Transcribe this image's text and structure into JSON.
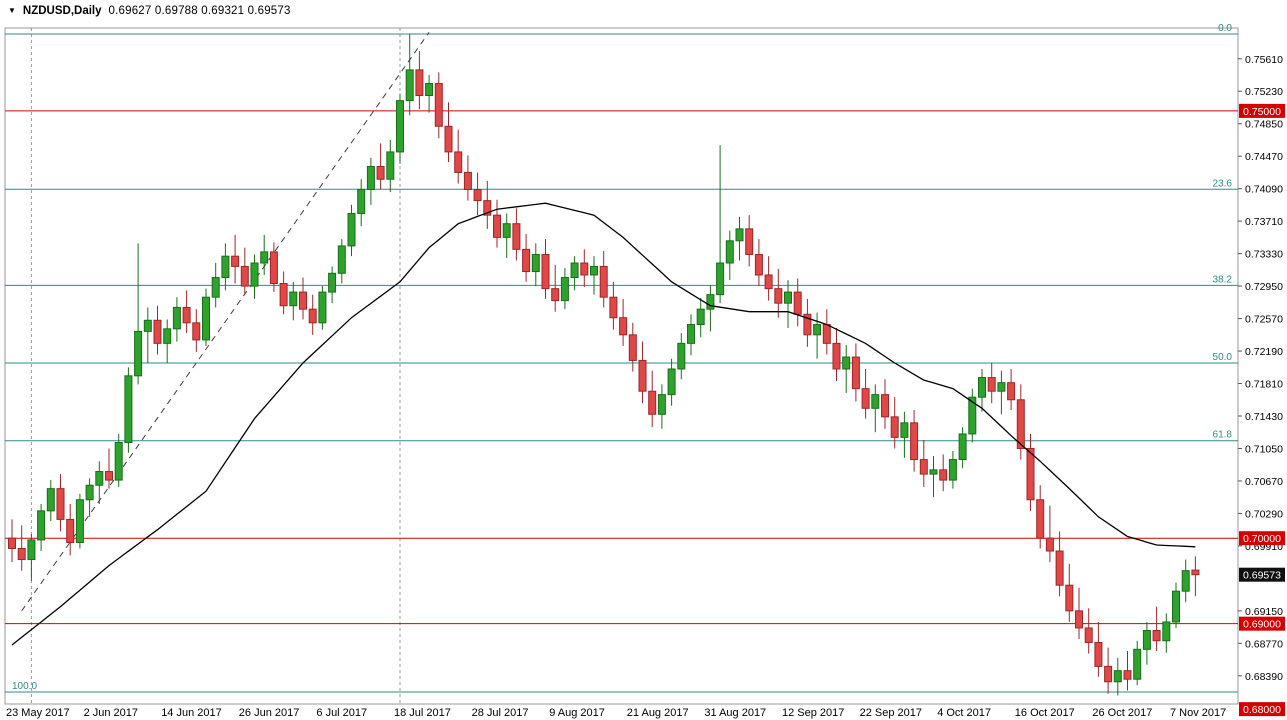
{
  "header": {
    "dropdown_glyph": "▼",
    "symbol": "NZDUSD,Daily",
    "ohlc": "0.69627 0.69788 0.69321 0.69573"
  },
  "chart_data": {
    "type": "candlestick",
    "symbol": "NZDUSD",
    "timeframe": "Daily",
    "open": 0.69627,
    "high": 0.69788,
    "low": 0.69321,
    "close": 0.69573,
    "current_price": 0.69573,
    "current_price_label": "0.69573",
    "ylim": [
      0.6806,
      0.7597
    ],
    "grid": false,
    "legend": false,
    "y_ticks": [
      "0.75610",
      "0.75230",
      "0.74850",
      "0.74470",
      "0.74090",
      "0.73710",
      "0.73330",
      "0.72950",
      "0.72570",
      "0.72190",
      "0.71810",
      "0.71430",
      "0.71050",
      "0.70670",
      "0.70290",
      "0.69910",
      "0.69150",
      "0.68770",
      "0.68390"
    ],
    "x_labels": [
      {
        "index": 0,
        "label": "23 May 2017"
      },
      {
        "index": 8,
        "label": "2 Jun 2017"
      },
      {
        "index": 16,
        "label": "14 Jun 2017"
      },
      {
        "index": 24,
        "label": "26 Jun 2017"
      },
      {
        "index": 32,
        "label": "6 Jul 2017"
      },
      {
        "index": 40,
        "label": "18 Jul 2017"
      },
      {
        "index": 48,
        "label": "28 Jul 2017"
      },
      {
        "index": 56,
        "label": "9 Aug 2017"
      },
      {
        "index": 64,
        "label": "21 Aug 2017"
      },
      {
        "index": 72,
        "label": "31 Aug 2017"
      },
      {
        "index": 80,
        "label": "12 Sep 2017"
      },
      {
        "index": 88,
        "label": "22 Sep 2017"
      },
      {
        "index": 96,
        "label": "4 Oct 2017"
      },
      {
        "index": 104,
        "label": "16 Oct 2017"
      },
      {
        "index": 112,
        "label": "26 Oct 2017"
      },
      {
        "index": 120,
        "label": "7 Nov 2017"
      }
    ],
    "price_lines": [
      {
        "price": 0.75,
        "label": "0.75000"
      },
      {
        "price": 0.7,
        "label": "0.70000"
      },
      {
        "price": 0.69,
        "label": "0.69000"
      },
      {
        "price": 0.68,
        "label": "0.68000"
      }
    ],
    "fibonacci_levels": [
      {
        "pct": "0.0",
        "price": 0.759,
        "label_side": "right"
      },
      {
        "pct": "23.6",
        "price": 0.74083,
        "label_side": "right"
      },
      {
        "pct": "38.2",
        "price": 0.72959,
        "label_side": "right"
      },
      {
        "pct": "50.0",
        "price": 0.7205,
        "label_side": "right"
      },
      {
        "pct": "61.8",
        "price": 0.71141,
        "label_side": "right"
      },
      {
        "pct": "100.0",
        "price": 0.682,
        "label_side": "left"
      }
    ],
    "trendline": {
      "from_index": 1,
      "from_price": 0.6915,
      "to_index": 43,
      "to_price": 0.7592,
      "dashed": true
    },
    "vlines": [
      {
        "index": 2
      },
      {
        "index": 40
      }
    ],
    "ma_points": [
      [
        0,
        0.6875
      ],
      [
        5,
        0.692
      ],
      [
        10,
        0.6968
      ],
      [
        15,
        0.701
      ],
      [
        20,
        0.7055
      ],
      [
        25,
        0.714
      ],
      [
        30,
        0.7205
      ],
      [
        35,
        0.7258
      ],
      [
        40,
        0.73
      ],
      [
        43,
        0.734
      ],
      [
        46,
        0.7368
      ],
      [
        50,
        0.7385
      ],
      [
        55,
        0.7392
      ],
      [
        60,
        0.7378
      ],
      [
        63,
        0.7352
      ],
      [
        68,
        0.73
      ],
      [
        72,
        0.7272
      ],
      [
        76,
        0.7265
      ],
      [
        80,
        0.7265
      ],
      [
        84,
        0.725
      ],
      [
        88,
        0.7228
      ],
      [
        91,
        0.7205
      ],
      [
        94,
        0.7185
      ],
      [
        97,
        0.7175
      ],
      [
        100,
        0.7152
      ],
      [
        103,
        0.712
      ],
      [
        106,
        0.709
      ],
      [
        109,
        0.7058
      ],
      [
        112,
        0.7025
      ],
      [
        115,
        0.7002
      ],
      [
        118,
        0.6992
      ],
      [
        122,
        0.699
      ]
    ],
    "candles": [
      [
        0.7,
        0.7022,
        0.6972,
        0.6988
      ],
      [
        0.6988,
        0.7015,
        0.6962,
        0.6975
      ],
      [
        0.6975,
        0.7005,
        0.695,
        0.6998
      ],
      [
        0.6998,
        0.704,
        0.6985,
        0.7032
      ],
      [
        0.7032,
        0.7068,
        0.702,
        0.7058
      ],
      [
        0.7058,
        0.7075,
        0.7008,
        0.7022
      ],
      [
        0.7022,
        0.704,
        0.698,
        0.6995
      ],
      [
        0.6995,
        0.7052,
        0.6988,
        0.7045
      ],
      [
        0.7045,
        0.707,
        0.7025,
        0.7062
      ],
      [
        0.7062,
        0.709,
        0.704,
        0.7078
      ],
      [
        0.7078,
        0.7105,
        0.7058,
        0.7068
      ],
      [
        0.7068,
        0.7122,
        0.706,
        0.7112
      ],
      [
        0.7112,
        0.72,
        0.71,
        0.719
      ],
      [
        0.719,
        0.7345,
        0.718,
        0.7242
      ],
      [
        0.7242,
        0.727,
        0.7205,
        0.7255
      ],
      [
        0.7255,
        0.7272,
        0.7215,
        0.7228
      ],
      [
        0.7228,
        0.7256,
        0.7205,
        0.7245
      ],
      [
        0.7245,
        0.7282,
        0.723,
        0.727
      ],
      [
        0.727,
        0.729,
        0.724,
        0.7252
      ],
      [
        0.7252,
        0.7268,
        0.7218,
        0.7232
      ],
      [
        0.7232,
        0.7292,
        0.7225,
        0.7282
      ],
      [
        0.7282,
        0.7322,
        0.727,
        0.7305
      ],
      [
        0.7305,
        0.7345,
        0.729,
        0.733
      ],
      [
        0.733,
        0.7355,
        0.7298,
        0.7318
      ],
      [
        0.7318,
        0.734,
        0.7285,
        0.7295
      ],
      [
        0.7295,
        0.7332,
        0.728,
        0.7322
      ],
      [
        0.7322,
        0.7355,
        0.7308,
        0.7335
      ],
      [
        0.7335,
        0.7346,
        0.7288,
        0.7298
      ],
      [
        0.7298,
        0.7312,
        0.7262,
        0.7272
      ],
      [
        0.7272,
        0.73,
        0.7255,
        0.7288
      ],
      [
        0.7288,
        0.7305,
        0.7256,
        0.7268
      ],
      [
        0.7268,
        0.7285,
        0.7238,
        0.7252
      ],
      [
        0.7252,
        0.7295,
        0.7244,
        0.7288
      ],
      [
        0.7288,
        0.7318,
        0.7275,
        0.731
      ],
      [
        0.731,
        0.735,
        0.7298,
        0.7342
      ],
      [
        0.7342,
        0.739,
        0.733,
        0.738
      ],
      [
        0.738,
        0.742,
        0.7365,
        0.7408
      ],
      [
        0.7408,
        0.7445,
        0.739,
        0.7435
      ],
      [
        0.7435,
        0.7462,
        0.7408,
        0.742
      ],
      [
        0.742,
        0.7466,
        0.7405,
        0.7452
      ],
      [
        0.7452,
        0.752,
        0.7438,
        0.7512
      ],
      [
        0.7512,
        0.759,
        0.7495,
        0.7548
      ],
      [
        0.7548,
        0.757,
        0.7502,
        0.7518
      ],
      [
        0.7518,
        0.7542,
        0.7498,
        0.7532
      ],
      [
        0.7532,
        0.7545,
        0.7468,
        0.7482
      ],
      [
        0.7482,
        0.751,
        0.744,
        0.7452
      ],
      [
        0.7452,
        0.7478,
        0.7415,
        0.7428
      ],
      [
        0.7428,
        0.7448,
        0.7395,
        0.7408
      ],
      [
        0.7408,
        0.7428,
        0.7378,
        0.7395
      ],
      [
        0.7395,
        0.7418,
        0.7362,
        0.7378
      ],
      [
        0.7378,
        0.7396,
        0.734,
        0.7352
      ],
      [
        0.7352,
        0.738,
        0.7328,
        0.7368
      ],
      [
        0.7368,
        0.7386,
        0.7325,
        0.7338
      ],
      [
        0.7338,
        0.7356,
        0.73,
        0.7312
      ],
      [
        0.7312,
        0.7345,
        0.7295,
        0.7332
      ],
      [
        0.7332,
        0.735,
        0.728,
        0.7292
      ],
      [
        0.7292,
        0.732,
        0.7265,
        0.7278
      ],
      [
        0.7278,
        0.7316,
        0.7268,
        0.7305
      ],
      [
        0.7305,
        0.733,
        0.729,
        0.7322
      ],
      [
        0.7322,
        0.7338,
        0.7294,
        0.7308
      ],
      [
        0.7308,
        0.733,
        0.7285,
        0.7318
      ],
      [
        0.7318,
        0.7336,
        0.727,
        0.7282
      ],
      [
        0.7282,
        0.73,
        0.7244,
        0.7258
      ],
      [
        0.7258,
        0.728,
        0.7225,
        0.7238
      ],
      [
        0.7238,
        0.7252,
        0.7195,
        0.7208
      ],
      [
        0.7208,
        0.723,
        0.7158,
        0.7172
      ],
      [
        0.7172,
        0.7196,
        0.713,
        0.7145
      ],
      [
        0.7145,
        0.718,
        0.7128,
        0.7168
      ],
      [
        0.7168,
        0.721,
        0.7155,
        0.7198
      ],
      [
        0.7198,
        0.724,
        0.7186,
        0.7228
      ],
      [
        0.7228,
        0.7262,
        0.7214,
        0.725
      ],
      [
        0.725,
        0.7281,
        0.7235,
        0.7268
      ],
      [
        0.7268,
        0.7296,
        0.7242,
        0.7285
      ],
      [
        0.7285,
        0.746,
        0.7275,
        0.7322
      ],
      [
        0.7322,
        0.736,
        0.7302,
        0.7348
      ],
      [
        0.7348,
        0.7376,
        0.7325,
        0.7362
      ],
      [
        0.7362,
        0.7378,
        0.7318,
        0.7332
      ],
      [
        0.7332,
        0.735,
        0.7295,
        0.7308
      ],
      [
        0.7308,
        0.733,
        0.7278,
        0.7292
      ],
      [
        0.7292,
        0.7315,
        0.7258,
        0.7275
      ],
      [
        0.7275,
        0.7302,
        0.7246,
        0.7288
      ],
      [
        0.7288,
        0.7304,
        0.7248,
        0.7262
      ],
      [
        0.7262,
        0.728,
        0.7224,
        0.7238
      ],
      [
        0.7238,
        0.7264,
        0.721,
        0.725
      ],
      [
        0.725,
        0.7268,
        0.7215,
        0.7228
      ],
      [
        0.7228,
        0.7246,
        0.7184,
        0.7198
      ],
      [
        0.7198,
        0.7226,
        0.717,
        0.7212
      ],
      [
        0.7212,
        0.7228,
        0.716,
        0.7175
      ],
      [
        0.7175,
        0.7198,
        0.714,
        0.7152
      ],
      [
        0.7152,
        0.718,
        0.7124,
        0.7168
      ],
      [
        0.7168,
        0.7186,
        0.7128,
        0.7142
      ],
      [
        0.7142,
        0.7165,
        0.7105,
        0.7118
      ],
      [
        0.7118,
        0.7148,
        0.7094,
        0.7135
      ],
      [
        0.7135,
        0.715,
        0.7078,
        0.7092
      ],
      [
        0.7092,
        0.7115,
        0.706,
        0.7075
      ],
      [
        0.7075,
        0.7096,
        0.7048,
        0.708
      ],
      [
        0.708,
        0.7098,
        0.7055,
        0.7068
      ],
      [
        0.7068,
        0.7102,
        0.7058,
        0.7092
      ],
      [
        0.7092,
        0.713,
        0.7082,
        0.7122
      ],
      [
        0.7122,
        0.7175,
        0.7112,
        0.7165
      ],
      [
        0.7165,
        0.7198,
        0.7148,
        0.7188
      ],
      [
        0.7188,
        0.7205,
        0.7158,
        0.7172
      ],
      [
        0.7172,
        0.7196,
        0.7145,
        0.7182
      ],
      [
        0.7182,
        0.7198,
        0.715,
        0.7162
      ],
      [
        0.7162,
        0.718,
        0.7092,
        0.7105
      ],
      [
        0.7105,
        0.7122,
        0.7032,
        0.7045
      ],
      [
        0.7045,
        0.7062,
        0.6988,
        0.7
      ],
      [
        0.7,
        0.7038,
        0.6972,
        0.6985
      ],
      [
        0.6985,
        0.7008,
        0.6932,
        0.6945
      ],
      [
        0.6945,
        0.697,
        0.6902,
        0.6915
      ],
      [
        0.6915,
        0.6942,
        0.6882,
        0.6895
      ],
      [
        0.6895,
        0.6918,
        0.6865,
        0.6878
      ],
      [
        0.6878,
        0.6902,
        0.6838,
        0.685
      ],
      [
        0.685,
        0.6872,
        0.6818,
        0.6832
      ],
      [
        0.6832,
        0.686,
        0.6816,
        0.6845
      ],
      [
        0.6845,
        0.6868,
        0.6822,
        0.6835
      ],
      [
        0.6835,
        0.688,
        0.6828,
        0.687
      ],
      [
        0.687,
        0.6902,
        0.6852,
        0.6892
      ],
      [
        0.6892,
        0.692,
        0.6868,
        0.688
      ],
      [
        0.688,
        0.6912,
        0.6866,
        0.6902
      ],
      [
        0.6902,
        0.6948,
        0.6895,
        0.6938
      ],
      [
        0.6938,
        0.6975,
        0.6925,
        0.6962
      ],
      [
        0.69627,
        0.69788,
        0.69321,
        0.69573
      ]
    ],
    "colors": {
      "background": "#ffffff",
      "bull": "#2da32d",
      "bull_border": "#176e17",
      "bear": "#e04747",
      "bear_border": "#9e2626",
      "ma": "#000000",
      "fib": "#2e8b8b",
      "level": "#d40000",
      "level_badge": "#d40000",
      "current_badge": "#101010",
      "badge_text": "#ffffff",
      "axis_text": "#000000",
      "trendline": "#3c3c3c",
      "vline": "#9a9a9a",
      "border": "#9a9a9a"
    }
  }
}
